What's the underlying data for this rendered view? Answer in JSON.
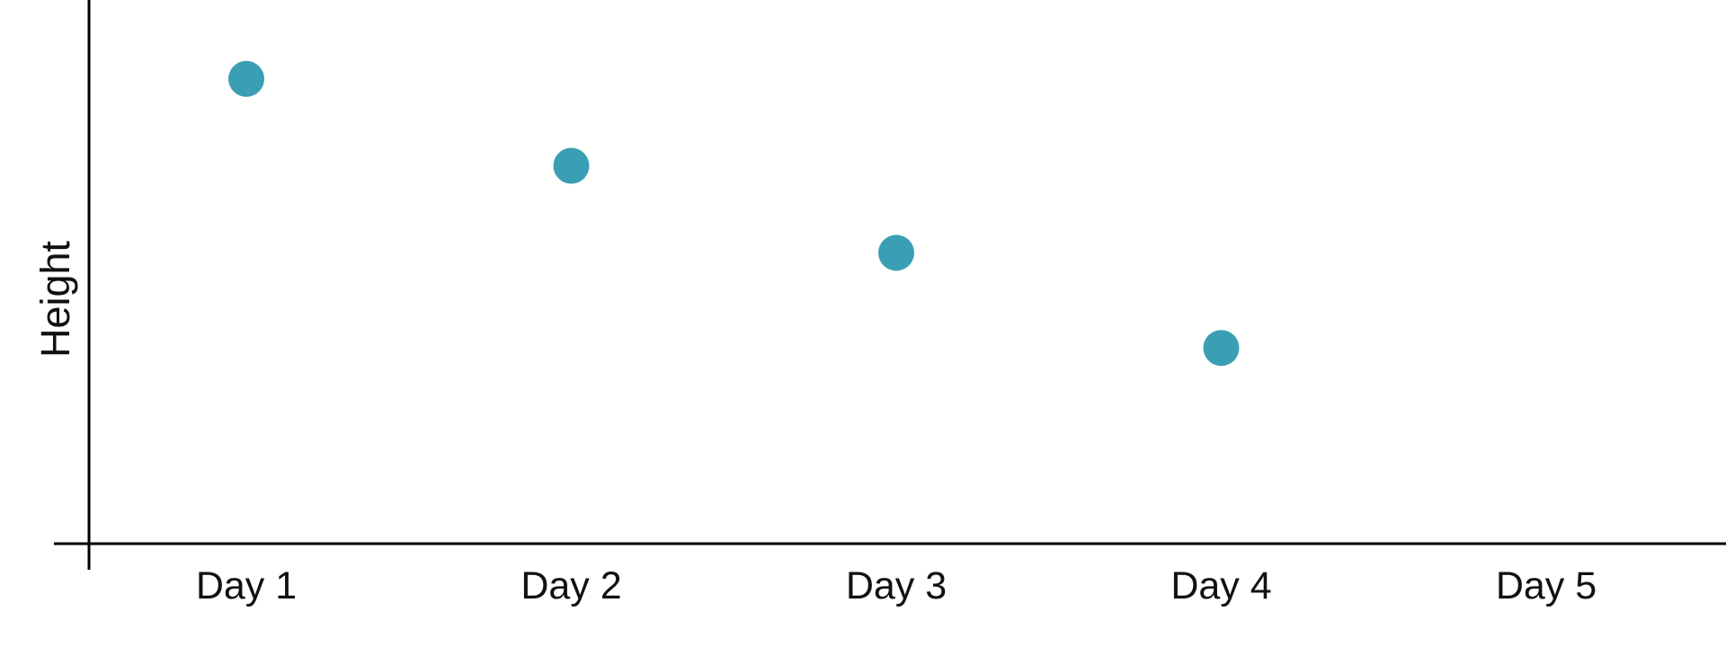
{
  "chart_data": {
    "type": "scatter",
    "categories": [
      "Day 1",
      "Day 2",
      "Day 3",
      "Day 4",
      "Day 5"
    ],
    "series": [
      {
        "values": [
          0.855,
          0.695,
          0.535,
          0.36,
          null
        ],
        "color": "#3a9fb4"
      }
    ],
    "xlabel": "",
    "ylabel": "Height",
    "ylim": [
      0,
      1
    ],
    "grid": false,
    "legend": "none"
  }
}
